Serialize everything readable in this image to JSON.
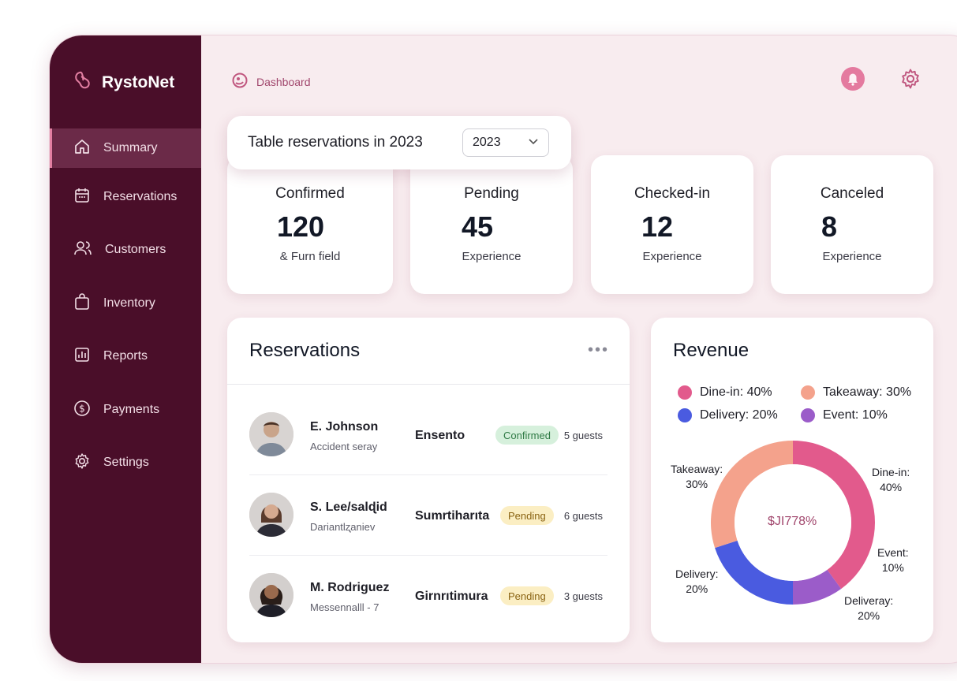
{
  "app": {
    "name": "RystoNet"
  },
  "nav": {
    "items": [
      {
        "label": "Summary",
        "icon": "home-icon",
        "active": true
      },
      {
        "label": "Reservations",
        "icon": "calendar-icon",
        "active": false
      },
      {
        "label": "Customers",
        "icon": "users-icon",
        "active": false
      },
      {
        "label": "Inventory",
        "icon": "bag-icon",
        "active": false
      },
      {
        "label": "Reports",
        "icon": "report-icon",
        "active": false
      },
      {
        "label": "Payments",
        "icon": "dollar-circle-icon",
        "active": false
      },
      {
        "label": "Settings",
        "icon": "gear-icon",
        "active": false
      }
    ]
  },
  "header": {
    "breadcrumb": "Dashboard"
  },
  "year_selector": {
    "title": "Table reservations in 2023",
    "value": "2023"
  },
  "stats": [
    {
      "title": "Confirmed",
      "value": "120",
      "sub": "& Furn field"
    },
    {
      "title": "Pending",
      "value": "45",
      "sub": "Experience"
    },
    {
      "title": "Checked-in",
      "value": "12",
      "sub": "Experience"
    },
    {
      "title": "Canceled",
      "value": "8",
      "sub": "Experience"
    }
  ],
  "reservations": {
    "title": "Reservations",
    "more": "•••",
    "rows": [
      {
        "name": "E. Johnson",
        "sub": "Accident seray",
        "place": "Ensento",
        "status": "Confirmed",
        "guests": "5 guests"
      },
      {
        "name": "S. Lee/salɖid",
        "sub": "Dariantlʐaniev",
        "place": "Sumrtiharıta",
        "status": "Pending",
        "guests": "6 guests"
      },
      {
        "name": "M. Rodriguez",
        "sub": "Messennalll - 7",
        "place": "Girnrıtimura",
        "status": "Pending",
        "guests": "3 guests"
      }
    ]
  },
  "revenue": {
    "title": "Revenue",
    "center": "$JI778%",
    "legend": [
      {
        "label": "Dine-in: 40%",
        "color": "#e25a8c"
      },
      {
        "label": "Takeaway: 30%",
        "color": "#f4a28c"
      },
      {
        "label": "Delivery: 20%",
        "color": "#4a5be0"
      },
      {
        "label": "Event: 10%",
        "color": "#9b5cc9"
      }
    ],
    "labels": {
      "dinein": [
        "Dine-in:",
        "40%"
      ],
      "takeaway": [
        "Takeaway:",
        "30%"
      ],
      "event": [
        "Event:",
        "10%"
      ],
      "delivery": [
        "Delivery:",
        "20%"
      ],
      "deliveray": [
        "Deliveray:",
        "20%"
      ]
    }
  },
  "chart_data": {
    "type": "pie",
    "title": "Revenue",
    "categories": [
      "Dine-in",
      "Takeaway",
      "Delivery",
      "Event"
    ],
    "values": [
      40,
      30,
      20,
      10
    ],
    "colors": [
      "#e25a8c",
      "#f4a28c",
      "#4a5be0",
      "#9b5cc9"
    ]
  }
}
